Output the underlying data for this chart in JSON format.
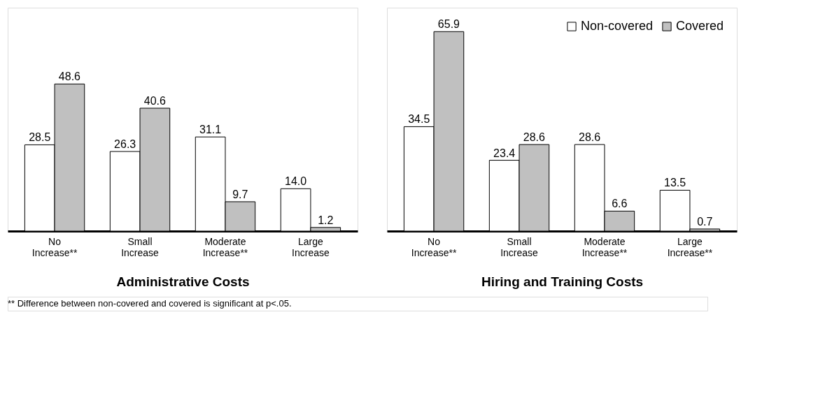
{
  "chart_data": [
    {
      "type": "bar",
      "xlabel": "Administrative Costs",
      "categories": [
        "No Increase**",
        "Small Increase",
        "Moderate Increase**",
        "Large Increase"
      ],
      "series": [
        {
          "color": "#ffffff",
          "values": [
            28.5,
            26.3,
            31.1,
            14.0
          ],
          "value_labels": [
            "28.5",
            "26.3",
            "31.1",
            "14.0"
          ]
        },
        {
          "color": "#c0c0c0",
          "values": [
            48.6,
            40.6,
            9.7,
            1.2
          ],
          "value_labels": [
            "48.6",
            "40.6",
            "9.7",
            "1.2"
          ]
        }
      ],
      "legend": false,
      "annotations": [
        "** Difference between non-covered and covered is significant at p<.05."
      ]
    },
    {
      "type": "bar",
      "xlabel": "Hiring and Training Costs",
      "categories": [
        "No Increase**",
        "Small Increase",
        "Moderate Increase**",
        "Large Increase**"
      ],
      "series": [
        {
          "name": "Non-covered",
          "color": "#ffffff",
          "values": [
            34.5,
            23.4,
            28.6,
            13.5
          ],
          "value_labels": [
            "34.5",
            "23.4",
            "28.6",
            "13.5"
          ]
        },
        {
          "name": "Covered",
          "color": "#c0c0c0",
          "values": [
            65.9,
            28.6,
            6.6,
            0.7
          ],
          "value_labels": [
            "65.9",
            "28.6",
            "6.6",
            "0.7"
          ]
        }
      ],
      "legend": "top right"
    }
  ]
}
